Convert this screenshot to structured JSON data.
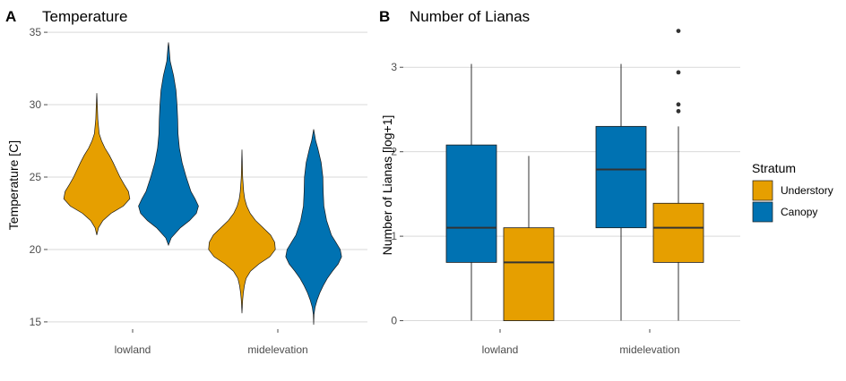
{
  "chart_data": [
    {
      "type": "violin",
      "panel": "A",
      "title": "Temperature",
      "xlabel": "",
      "ylabel": "Temperature [C]",
      "ylim": [
        14.5,
        35.5
      ],
      "yticks": [
        "15",
        "20",
        "25",
        "30",
        "35"
      ],
      "categories": [
        "lowland",
        "midelevation"
      ],
      "series": [
        {
          "name": "Understory",
          "color": "#E69F00",
          "groups": [
            {
              "category": "lowland",
              "profile": [
                [
                  21.0,
                  0.0
                ],
                [
                  21.5,
                  0.05
                ],
                [
                  22.0,
                  0.18
                ],
                [
                  22.5,
                  0.42
                ],
                [
                  23.0,
                  0.78
                ],
                [
                  23.5,
                  0.97
                ],
                [
                  24.0,
                  0.93
                ],
                [
                  24.5,
                  0.8
                ],
                [
                  25.0,
                  0.68
                ],
                [
                  25.5,
                  0.58
                ],
                [
                  26.0,
                  0.48
                ],
                [
                  26.5,
                  0.37
                ],
                [
                  27.0,
                  0.24
                ],
                [
                  27.5,
                  0.14
                ],
                [
                  28.0,
                  0.07
                ],
                [
                  29.0,
                  0.03
                ],
                [
                  30.0,
                  0.015
                ],
                [
                  30.8,
                  0.0
                ]
              ]
            },
            {
              "category": "midelevation",
              "profile": [
                [
                  15.6,
                  0.0
                ],
                [
                  16.5,
                  0.02
                ],
                [
                  17.0,
                  0.04
                ],
                [
                  17.5,
                  0.07
                ],
                [
                  18.0,
                  0.12
                ],
                [
                  18.5,
                  0.25
                ],
                [
                  19.0,
                  0.5
                ],
                [
                  19.5,
                  0.82
                ],
                [
                  20.0,
                  0.98
                ],
                [
                  20.5,
                  0.96
                ],
                [
                  21.0,
                  0.84
                ],
                [
                  21.5,
                  0.62
                ],
                [
                  22.0,
                  0.4
                ],
                [
                  22.5,
                  0.24
                ],
                [
                  23.0,
                  0.14
                ],
                [
                  23.5,
                  0.08
                ],
                [
                  24.0,
                  0.05
                ],
                [
                  25.0,
                  0.02
                ],
                [
                  26.0,
                  0.01
                ],
                [
                  26.9,
                  0.0
                ]
              ]
            }
          ]
        },
        {
          "name": "Canopy",
          "color": "#0072B2",
          "groups": [
            {
              "category": "lowland",
              "profile": [
                [
                  20.3,
                  0.0
                ],
                [
                  20.8,
                  0.08
                ],
                [
                  21.5,
                  0.35
                ],
                [
                  22.0,
                  0.62
                ],
                [
                  22.5,
                  0.82
                ],
                [
                  23.0,
                  0.88
                ],
                [
                  23.5,
                  0.78
                ],
                [
                  24.0,
                  0.66
                ],
                [
                  25.0,
                  0.52
                ],
                [
                  26.0,
                  0.4
                ],
                [
                  27.0,
                  0.32
                ],
                [
                  28.0,
                  0.28
                ],
                [
                  29.0,
                  0.27
                ],
                [
                  30.0,
                  0.25
                ],
                [
                  31.0,
                  0.22
                ],
                [
                  32.0,
                  0.15
                ],
                [
                  32.5,
                  0.1
                ],
                [
                  33.0,
                  0.05
                ],
                [
                  34.0,
                  0.015
                ],
                [
                  34.3,
                  0.0
                ]
              ]
            },
            {
              "category": "midelevation",
              "profile": [
                [
                  14.8,
                  0.0
                ],
                [
                  15.5,
                  0.01
                ],
                [
                  16.0,
                  0.04
                ],
                [
                  16.5,
                  0.1
                ],
                [
                  17.0,
                  0.18
                ],
                [
                  17.5,
                  0.28
                ],
                [
                  18.0,
                  0.4
                ],
                [
                  18.5,
                  0.55
                ],
                [
                  19.0,
                  0.72
                ],
                [
                  19.5,
                  0.82
                ],
                [
                  20.0,
                  0.78
                ],
                [
                  20.5,
                  0.65
                ],
                [
                  21.0,
                  0.52
                ],
                [
                  22.0,
                  0.38
                ],
                [
                  23.0,
                  0.3
                ],
                [
                  24.0,
                  0.28
                ],
                [
                  25.0,
                  0.27
                ],
                [
                  26.0,
                  0.22
                ],
                [
                  27.0,
                  0.12
                ],
                [
                  27.5,
                  0.06
                ],
                [
                  28.3,
                  0.0
                ]
              ]
            }
          ]
        }
      ]
    },
    {
      "type": "box",
      "panel": "B",
      "title": "Number of Lianas",
      "xlabel": "",
      "ylabel": "Number of Lianas [log+1]",
      "ylim": [
        -0.1,
        3.5
      ],
      "yticks": [
        "0",
        "1",
        "2",
        "3"
      ],
      "categories": [
        "lowland",
        "midelevation"
      ],
      "series": [
        {
          "name": "Canopy",
          "color": "#0072B2",
          "boxes": [
            {
              "category": "lowland",
              "min": 0,
              "q1": 0.69,
              "median": 1.1,
              "q3": 2.08,
              "max": 3.04,
              "outliers": []
            },
            {
              "category": "midelevation",
              "min": 0,
              "q1": 1.1,
              "median": 1.79,
              "q3": 2.3,
              "max": 3.04,
              "outliers": []
            }
          ]
        },
        {
          "name": "Understory",
          "color": "#E69F00",
          "boxes": [
            {
              "category": "lowland",
              "min": 0,
              "q1": 0,
              "median": 0.69,
              "q3": 1.1,
              "max": 1.95,
              "outliers": []
            },
            {
              "category": "midelevation",
              "min": 0,
              "q1": 0.69,
              "median": 1.1,
              "q3": 1.39,
              "max": 2.3,
              "outliers": [
                2.48,
                2.56,
                2.94,
                3.43
              ]
            }
          ]
        }
      ]
    }
  ],
  "legend": {
    "title": "Stratum",
    "items": [
      {
        "label": "Understory",
        "color": "#E69F00"
      },
      {
        "label": "Canopy",
        "color": "#0072B2"
      }
    ]
  }
}
